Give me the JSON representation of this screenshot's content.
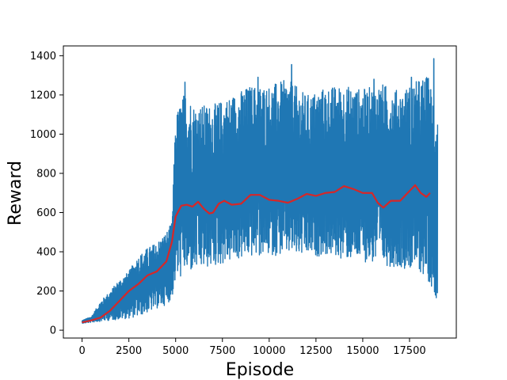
{
  "chart_data": {
    "type": "line",
    "title": "",
    "xlabel": "Episode",
    "ylabel": "Reward",
    "xlim": [
      -1000,
      20000
    ],
    "ylim": [
      -40,
      1450
    ],
    "xticks": [
      0,
      2500,
      5000,
      7500,
      10000,
      12500,
      15000,
      17500
    ],
    "xtick_labels": [
      "0",
      "2500",
      "5000",
      "7500",
      "10000",
      "12500",
      "15000",
      "17500"
    ],
    "yticks": [
      0,
      200,
      400,
      600,
      800,
      1000,
      1200,
      1400
    ],
    "ytick_labels": [
      "0",
      "200",
      "400",
      "600",
      "800",
      "1000",
      "1200",
      "1400"
    ],
    "grid": false,
    "legend": "none",
    "series": [
      {
        "role": "raw-episode-reward",
        "color": "#1f77b4",
        "x_max": 19000,
        "envelope": {
          "x": [
            0,
            500,
            1000,
            1500,
            2000,
            2500,
            3000,
            3500,
            4000,
            4500,
            4800,
            5000,
            5500,
            6000,
            7000,
            8000,
            9000,
            10000,
            11000,
            12000,
            13000,
            14000,
            15000,
            16000,
            17000,
            18000,
            18500,
            19000
          ],
          "low": [
            35,
            40,
            45,
            50,
            55,
            60,
            70,
            90,
            110,
            130,
            160,
            250,
            280,
            300,
            320,
            350,
            370,
            380,
            380,
            370,
            380,
            360,
            350,
            330,
            320,
            300,
            250,
            150
          ],
          "high": [
            50,
            70,
            150,
            200,
            260,
            300,
            380,
            420,
            450,
            500,
            550,
            1100,
            1220,
            1150,
            1150,
            1200,
            1250,
            1250,
            1280,
            1200,
            1240,
            1250,
            1230,
            1260,
            1220,
            1280,
            1300,
            1110
          ],
          "peaks": [
            {
              "x": 5500,
              "y": 1265
            },
            {
              "x": 9400,
              "y": 1290
            },
            {
              "x": 11200,
              "y": 1355
            },
            {
              "x": 15600,
              "y": 1280
            },
            {
              "x": 17600,
              "y": 1290
            },
            {
              "x": 18800,
              "y": 1385
            }
          ]
        }
      },
      {
        "role": "moving-average",
        "color": "#d62728",
        "x": [
          0,
          500,
          1000,
          1500,
          2000,
          2500,
          3000,
          3500,
          4000,
          4500,
          4800,
          5000,
          5300,
          5600,
          5900,
          6200,
          6500,
          6800,
          7000,
          7300,
          7600,
          8000,
          8500,
          9000,
          9500,
          10000,
          10500,
          11000,
          11500,
          12000,
          12500,
          13000,
          13500,
          14000,
          14500,
          15000,
          15500,
          15800,
          16100,
          16500,
          17000,
          17500,
          17800,
          18100,
          18400,
          18600
        ],
        "y": [
          40,
          50,
          65,
          100,
          150,
          200,
          235,
          280,
          300,
          350,
          450,
          580,
          635,
          640,
          630,
          655,
          620,
          595,
          600,
          645,
          660,
          640,
          645,
          690,
          690,
          665,
          660,
          650,
          670,
          695,
          685,
          700,
          705,
          735,
          720,
          700,
          700,
          650,
          625,
          660,
          660,
          710,
          740,
          700,
          680,
          700
        ]
      }
    ]
  }
}
